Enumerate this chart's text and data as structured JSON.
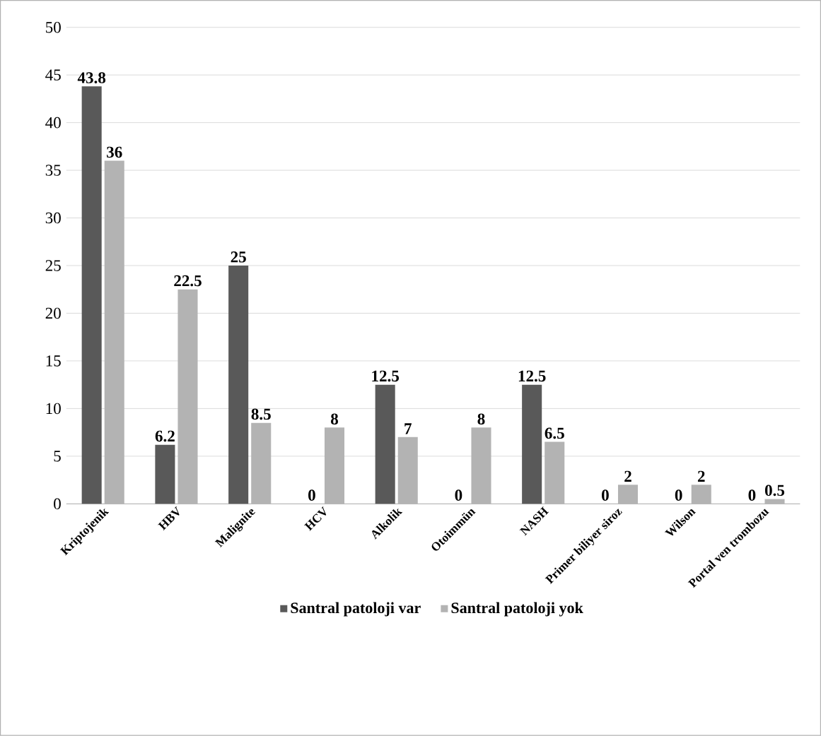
{
  "chart_data": {
    "type": "bar",
    "categories": [
      "Kriptojenik",
      "HBV",
      "Malignite",
      "HCV",
      "Alkolik",
      "Otoimmün",
      "NASH",
      "Primer biliyer siroz",
      "Wilson",
      "Portal ven trombozu"
    ],
    "series": [
      {
        "name": "Santral patoloji var",
        "color": "#595959",
        "values": [
          43.8,
          6.2,
          25,
          0,
          12.5,
          0,
          12.5,
          0,
          0,
          0
        ]
      },
      {
        "name": "Santral patoloji yok",
        "color": "#b3b3b3",
        "values": [
          36,
          22.5,
          8.5,
          8,
          7,
          8,
          6.5,
          2,
          2,
          0.5
        ]
      }
    ],
    "ylim": [
      0,
      50
    ],
    "yticks": [
      0,
      5,
      10,
      15,
      20,
      25,
      30,
      35,
      40,
      45,
      50
    ],
    "grid": "y",
    "legend": "bottom",
    "data_labels": true
  }
}
